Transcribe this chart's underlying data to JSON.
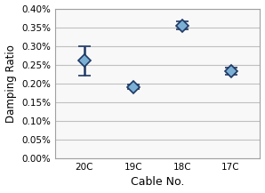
{
  "categories": [
    "20C",
    "19C",
    "18C",
    "17C"
  ],
  "means": [
    0.00262,
    0.0019,
    0.00355,
    0.00232
  ],
  "ci_lower": [
    0.00222,
    0.00185,
    0.00345,
    0.00224
  ],
  "ci_upper": [
    0.003,
    0.00197,
    0.00365,
    0.00242
  ],
  "xlabel": "Cable No.",
  "ylabel": "Damping Ratio",
  "ylim_min": 0.0,
  "ylim_max": 0.004,
  "ytick_step": 0.0005,
  "marker_color": "#7BAFD4",
  "marker_edge_color": "#1F3864",
  "cap_color": "#1F3864",
  "grid_color": "#C0C0C0",
  "background_color": "#FFFFFF",
  "plot_bg_color": "#F8F8F8",
  "border_color": "#A0A0A0",
  "marker_size": 7,
  "marker_style": "D",
  "linewidth": 1.8,
  "capsize": 5,
  "capthick": 1.8,
  "xlabel_fontsize": 9,
  "ylabel_fontsize": 8.5,
  "tick_fontsize": 7.5
}
